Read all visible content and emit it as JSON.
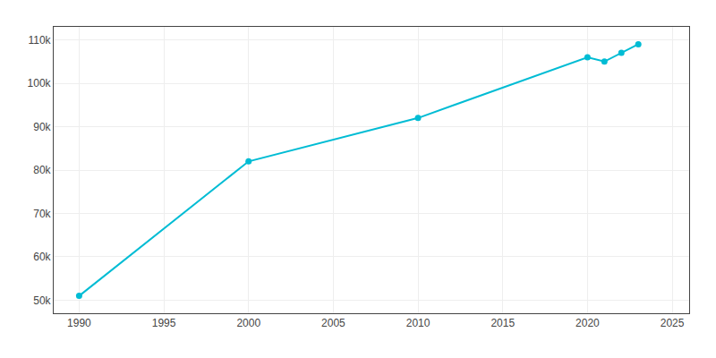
{
  "chart_data": {
    "type": "line",
    "x": [
      1990,
      2000,
      2010,
      2020,
      2021,
      2022,
      2023
    ],
    "values": [
      51000,
      82000,
      92000,
      106000,
      105000,
      107000,
      109000
    ],
    "color": "#00bcd4",
    "marker": "circle",
    "xlim": [
      1988.5,
      2026
    ],
    "ylim": [
      47000,
      113000
    ],
    "xticks": [
      1990,
      1995,
      2000,
      2005,
      2010,
      2015,
      2020,
      2025
    ],
    "yticks": [
      {
        "value": 50000,
        "label": "50k"
      },
      {
        "value": 60000,
        "label": "60k"
      },
      {
        "value": 70000,
        "label": "70k"
      },
      {
        "value": 80000,
        "label": "80k"
      },
      {
        "value": 90000,
        "label": "90k"
      },
      {
        "value": 100000,
        "label": "100k"
      },
      {
        "value": 110000,
        "label": "110k"
      }
    ],
    "grid": true
  }
}
